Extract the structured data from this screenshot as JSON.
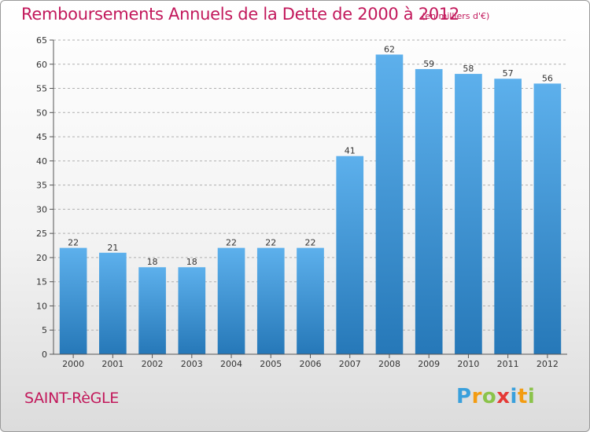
{
  "title": "Remboursements Annuels de la Dette de 2000 à 2012",
  "unit": "(en milliers d'€)",
  "commune": "SAINT-RèGLE",
  "brand": {
    "letters": [
      "P",
      "r",
      "o",
      "x",
      "i",
      "t",
      "i"
    ],
    "colors": [
      "#3aa0dc",
      "#f39c12",
      "#8bc34a",
      "#e53935",
      "#3aa0dc",
      "#f39c12",
      "#8bc34a"
    ]
  },
  "colors": {
    "title": "#c2185b",
    "bar_top": "#5db0ec",
    "bar_bottom": "#2678b8",
    "grid": "#b0b0b0"
  },
  "chart_data": {
    "type": "bar",
    "categories": [
      "2000",
      "2001",
      "2002",
      "2003",
      "2004",
      "2005",
      "2006",
      "2007",
      "2008",
      "2009",
      "2010",
      "2011",
      "2012"
    ],
    "values": [
      22,
      21,
      18,
      18,
      22,
      22,
      22,
      41,
      62,
      59,
      58,
      57,
      56
    ],
    "ylim": [
      0,
      65
    ],
    "yticks": [
      0,
      5,
      10,
      15,
      20,
      25,
      30,
      35,
      40,
      45,
      50,
      55,
      60,
      65
    ],
    "grid": "horizontal dashed",
    "data_labels": true
  }
}
